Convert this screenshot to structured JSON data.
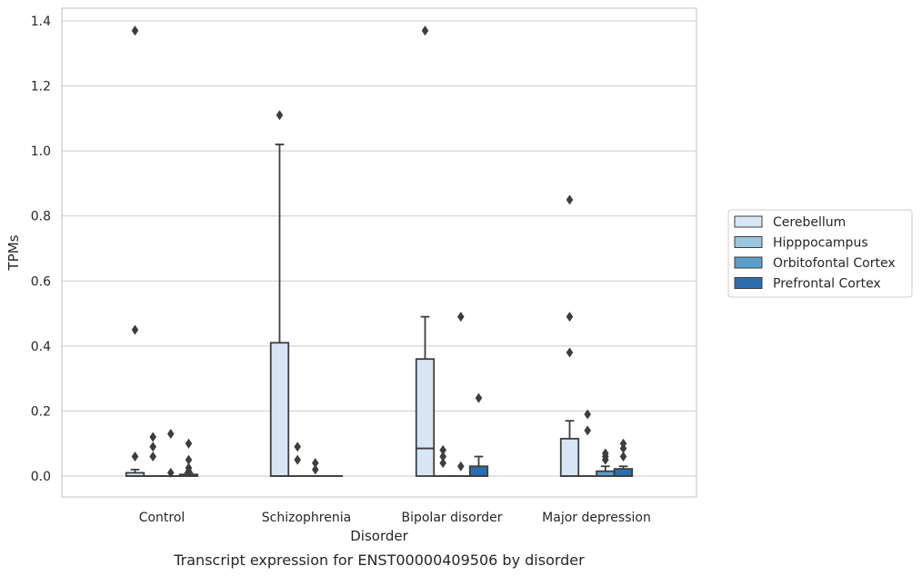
{
  "chart_data": {
    "type": "box",
    "caption": "Transcript expression for ENST00000409506 by disorder",
    "xlabel": "Disorder",
    "ylabel": "TPMs",
    "ylim": [
      -0.067,
      1.44
    ],
    "yticks": [
      0.0,
      0.2,
      0.4,
      0.6,
      0.8,
      1.0,
      1.2,
      1.4
    ],
    "ytick_labels": [
      "0.0",
      "0.2",
      "0.4",
      "0.6",
      "0.8",
      "1.0",
      "1.2",
      "1.4"
    ],
    "grid": "horizontal",
    "legend_position": "right",
    "categories": [
      "Control",
      "Schizophrenia",
      "Bipolar disorder",
      "Major depression"
    ],
    "series": [
      {
        "name": "Cerebellum",
        "color": "#d8e5f4",
        "boxes": [
          {
            "q1": 0.0,
            "median": 0.0,
            "q3": 0.01,
            "whisker_low": 0.0,
            "whisker_high": 0.02,
            "outliers": [
              1.37,
              0.45,
              0.06
            ]
          },
          {
            "q1": 0.0,
            "median": 0.0,
            "q3": 0.41,
            "whisker_low": 0.0,
            "whisker_high": 1.02,
            "outliers": [
              1.11
            ]
          },
          {
            "q1": 0.0,
            "median": 0.085,
            "q3": 0.36,
            "whisker_low": 0.0,
            "whisker_high": 0.49,
            "outliers": [
              1.37
            ]
          },
          {
            "q1": 0.0,
            "median": 0.0,
            "q3": 0.115,
            "whisker_low": 0.0,
            "whisker_high": 0.17,
            "outliers": [
              0.85,
              0.49,
              0.38
            ]
          }
        ]
      },
      {
        "name": "Hipppocampus",
        "color": "#9ac6e0",
        "boxes": [
          {
            "q1": 0.0,
            "median": 0.0,
            "q3": 0.0,
            "whisker_low": 0.0,
            "whisker_high": 0.0,
            "outliers": [
              0.12,
              0.09,
              0.06
            ]
          },
          {
            "q1": 0.0,
            "median": 0.0,
            "q3": 0.0,
            "whisker_low": 0.0,
            "whisker_high": 0.0,
            "outliers": [
              0.09,
              0.05
            ]
          },
          {
            "q1": 0.0,
            "median": 0.0,
            "q3": 0.0,
            "whisker_low": 0.0,
            "whisker_high": 0.0,
            "outliers": [
              0.08,
              0.06,
              0.04
            ]
          },
          {
            "q1": 0.0,
            "median": 0.0,
            "q3": 0.0,
            "whisker_low": 0.0,
            "whisker_high": 0.0,
            "outliers": [
              0.19,
              0.14
            ]
          }
        ]
      },
      {
        "name": "Orbitofontal Cortex",
        "color": "#5b9ec9",
        "boxes": [
          {
            "q1": 0.0,
            "median": 0.0,
            "q3": 0.0,
            "whisker_low": 0.0,
            "whisker_high": 0.0,
            "outliers": [
              0.13,
              0.01
            ]
          },
          {
            "q1": 0.0,
            "median": 0.0,
            "q3": 0.0,
            "whisker_low": 0.0,
            "whisker_high": 0.0,
            "outliers": [
              0.04,
              0.02
            ]
          },
          {
            "q1": 0.0,
            "median": 0.0,
            "q3": 0.0,
            "whisker_low": 0.0,
            "whisker_high": 0.0,
            "outliers": [
              0.49,
              0.03
            ]
          },
          {
            "q1": 0.0,
            "median": 0.0,
            "q3": 0.015,
            "whisker_low": 0.0,
            "whisker_high": 0.03,
            "outliers": [
              0.07,
              0.06,
              0.05
            ]
          }
        ]
      },
      {
        "name": "Prefrontal Cortex",
        "color": "#2c6fae",
        "boxes": [
          {
            "q1": 0.0,
            "median": 0.0,
            "q3": 0.005,
            "whisker_low": 0.0,
            "whisker_high": 0.01,
            "outliers": [
              0.1,
              0.05,
              0.025,
              0.015
            ]
          },
          {
            "q1": 0.0,
            "median": 0.0,
            "q3": 0.0,
            "whisker_low": 0.0,
            "whisker_high": 0.0,
            "outliers": []
          },
          {
            "q1": 0.0,
            "median": 0.0,
            "q3": 0.03,
            "whisker_low": 0.0,
            "whisker_high": 0.06,
            "outliers": [
              0.24
            ]
          },
          {
            "q1": 0.0,
            "median": 0.0,
            "q3": 0.022,
            "whisker_low": 0.0,
            "whisker_high": 0.03,
            "outliers": [
              0.1,
              0.085,
              0.06
            ]
          }
        ]
      }
    ]
  }
}
